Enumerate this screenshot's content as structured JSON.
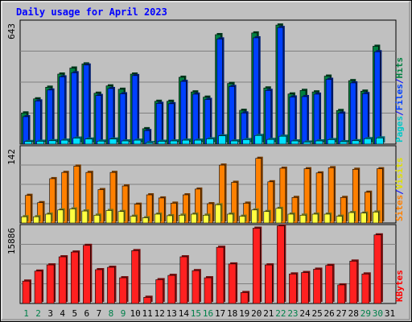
{
  "chart_data": {
    "type": "bar",
    "title": "Daily usage for April 2023",
    "days": [
      "1",
      "2",
      "3",
      "4",
      "5",
      "6",
      "7",
      "8",
      "9",
      "10",
      "11",
      "12",
      "13",
      "14",
      "15",
      "16",
      "17",
      "18",
      "19",
      "20",
      "21",
      "22",
      "23",
      "24",
      "25",
      "26",
      "27",
      "28",
      "29",
      "30",
      "31"
    ],
    "weekend_days": [
      "1",
      "2",
      "8",
      "9",
      "15",
      "16",
      "22",
      "23",
      "29",
      "30"
    ],
    "panels": [
      {
        "name": "hits-files-pages",
        "scale_max": "643",
        "ymax": 643,
        "side_labels": [
          {
            "text": "Pages",
            "color": "#00c8c8"
          },
          {
            "text": "/",
            "color": "#0000ff"
          },
          {
            "text": "Files",
            "color": "#0040ff"
          },
          {
            "text": "/",
            "color": "#0000ff"
          },
          {
            "text": "Hits",
            "color": "#008040"
          }
        ],
        "series": [
          {
            "name": "Hits",
            "color": "#008040",
            "values": [
              166,
              241,
              303,
              373,
              405,
              427,
              271,
              310,
              292,
              373,
              82,
              228,
              228,
              356,
              278,
              250,
              583,
              323,
              180,
              592,
              299,
              634,
              267,
              286,
              278,
              362,
              179,
              338,
              282,
              521,
              0
            ]
          },
          {
            "name": "Files",
            "color": "#0040ff",
            "values": [
              146,
              230,
              288,
              358,
              380,
              421,
              259,
              296,
              268,
              365,
              72,
              217,
              215,
              334,
              266,
              238,
              560,
              307,
              166,
              566,
              286,
              621,
              251,
              253,
              266,
              345,
              165,
              326,
              269,
              492,
              0
            ]
          },
          {
            "name": "Pages",
            "color": "#00e0ff",
            "values": [
              14,
              15,
              18,
              21,
              32,
              27,
              16,
              27,
              17,
              21,
              8,
              15,
              17,
              21,
              21,
              28,
              44,
              17,
              24,
              46,
              25,
              42,
              17,
              11,
              17,
              24,
              13,
              18,
              29,
              33,
              0
            ]
          }
        ]
      },
      {
        "name": "visits-sites",
        "scale_max": "142",
        "ymax": 142,
        "side_labels": [
          {
            "text": "Sites",
            "color": "#ff8000"
          },
          {
            "text": "/",
            "color": "#0000ff"
          },
          {
            "text": "Visits",
            "color": "#e0e000"
          }
        ],
        "series": [
          {
            "name": "Sites",
            "color": "#ff8000",
            "values": [
              53,
              39,
              85,
              97,
              109,
              97,
              64,
              97,
              71,
              36,
              54,
              48,
              38,
              54,
              65,
              37,
              111,
              78,
              38,
              124,
              79,
              105,
              49,
              104,
              96,
              106,
              49,
              103,
              59,
              104,
              0
            ]
          },
          {
            "name": "Visits",
            "color": "#ffff40",
            "values": [
              12,
              12,
              17,
              25,
              27,
              23,
              15,
              24,
              22,
              13,
              10,
              17,
              14,
              15,
              17,
              15,
              35,
              17,
              13,
              25,
              22,
              28,
              17,
              15,
              17,
              17,
              13,
              20,
              19,
              21,
              0
            ]
          }
        ]
      },
      {
        "name": "kbytes",
        "scale_max": "15886",
        "ymax": 15886,
        "side_labels": [
          {
            "text": "KBytes",
            "color": "#ff0000"
          }
        ],
        "series": [
          {
            "name": "KBytes",
            "color": "#ff2020",
            "values": [
              4700,
              6800,
              8100,
              9800,
              10800,
              12200,
              7100,
              7600,
              5400,
              11100,
              1300,
              5000,
              5900,
              9800,
              6900,
              5400,
              11800,
              8300,
              2300,
              15800,
              8100,
              16300,
              6200,
              6500,
              7200,
              8000,
              3900,
              8900,
              6200,
              14400,
              0
            ]
          }
        ]
      }
    ]
  }
}
